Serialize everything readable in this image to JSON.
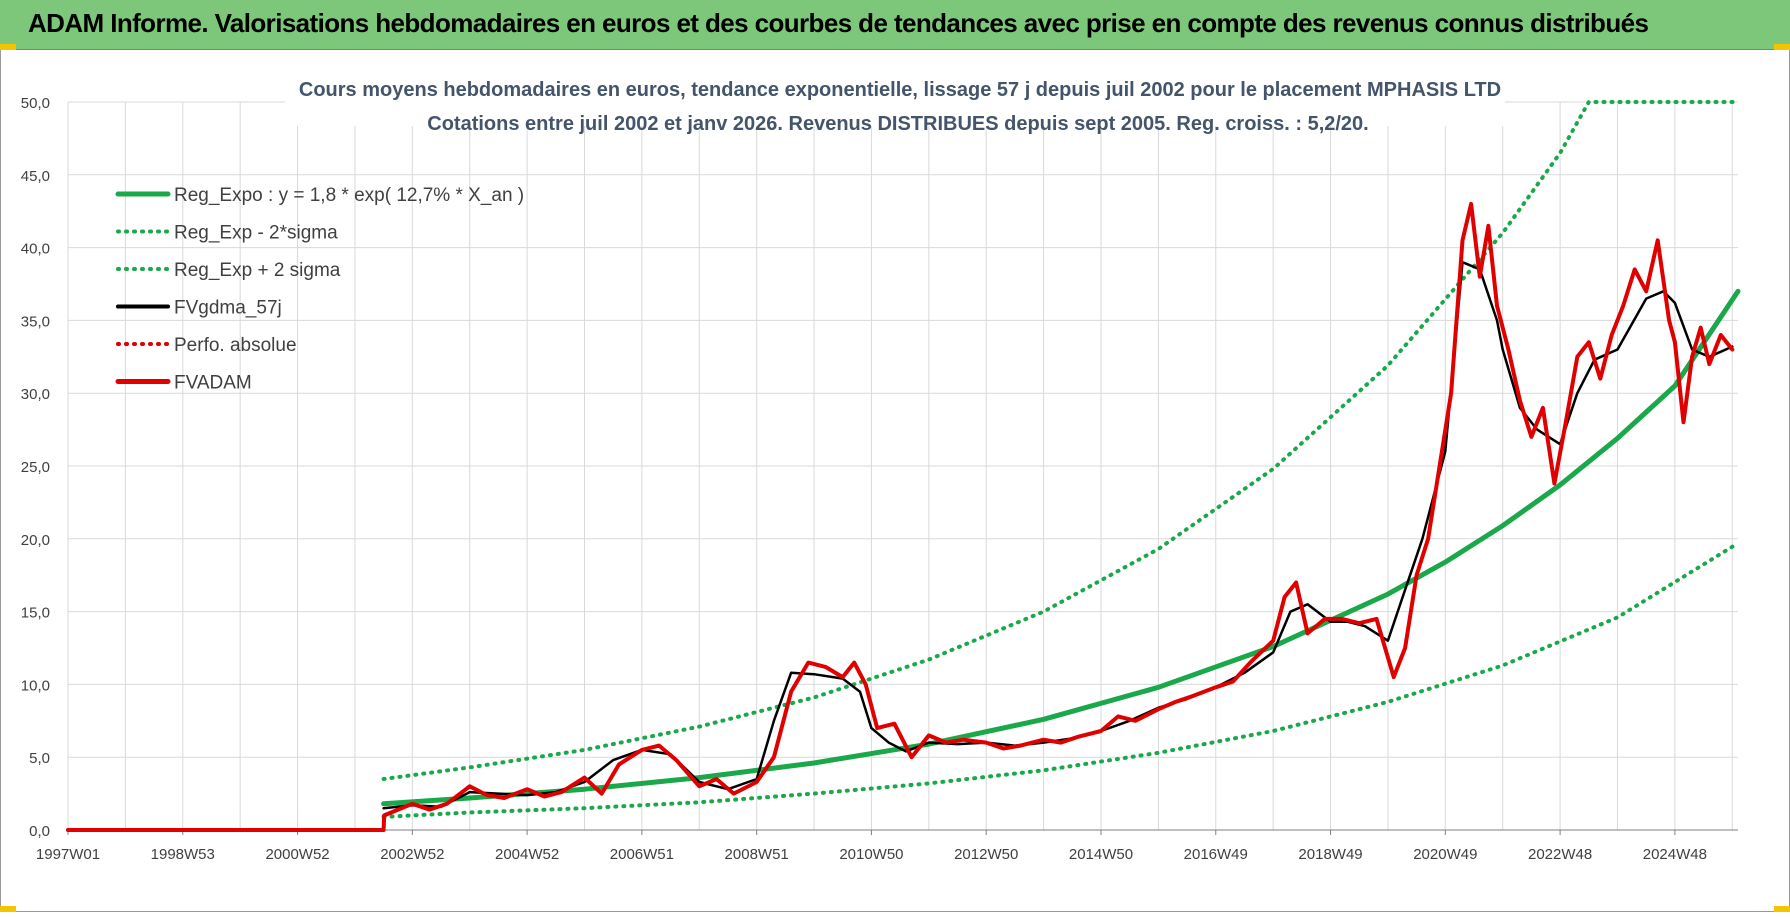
{
  "banner": {
    "title": "ADAM Informe. Valorisations hebdomadaires en euros et des courbes de tendances avec prise en compte des revenus connus distribués"
  },
  "colors": {
    "banner_bg": "#7dc77a",
    "reg_expo": "#1aa84a",
    "fvgdma": "#000000",
    "fvadam": "#e00000",
    "grid": "#d9d9d9",
    "text": "#404040"
  },
  "chart_data": {
    "type": "line",
    "title": "Cours moyens hebdomadaires en euros, tendance exponentielle, lissage 57 j depuis juil 2002 pour le placement MPHASIS LTD",
    "subtitle": "Cotations entre juil 2002 et janv 2026. Revenus DISTRIBUES depuis sept 2005. Reg. croiss. : 5,2/20.",
    "xlabel": "",
    "ylabel": "",
    "ylim": [
      0,
      50
    ],
    "xlim": [
      1997.0,
      2026.1
    ],
    "y_ticks": [
      "0,0",
      "5,0",
      "10,0",
      "15,0",
      "20,0",
      "25,0",
      "30,0",
      "35,0",
      "40,0",
      "45,0",
      "50,0"
    ],
    "x_ticks": [
      {
        "label": "1997W01",
        "x": 1997.0
      },
      {
        "label": "1998W53",
        "x": 1999.0
      },
      {
        "label": "2000W52",
        "x": 2001.0
      },
      {
        "label": "2002W52",
        "x": 2003.0
      },
      {
        "label": "2004W52",
        "x": 2005.0
      },
      {
        "label": "2006W51",
        "x": 2007.0
      },
      {
        "label": "2008W51",
        "x": 2009.0
      },
      {
        "label": "2010W50",
        "x": 2011.0
      },
      {
        "label": "2012W50",
        "x": 2013.0
      },
      {
        "label": "2014W50",
        "x": 2015.0
      },
      {
        "label": "2016W49",
        "x": 2017.0
      },
      {
        "label": "2018W49",
        "x": 2019.0
      },
      {
        "label": "2020W49",
        "x": 2021.0
      },
      {
        "label": "2022W48",
        "x": 2023.0
      },
      {
        "label": "2024W48",
        "x": 2025.0
      }
    ],
    "grid": true,
    "legend_position": "top-left",
    "series": [
      {
        "name": "Reg_Expo : y = 1,8 * exp( 12,7% *  X_an )",
        "style": "solid-thick",
        "color": "#1aa84a",
        "x": [
          2002.5,
          2004.0,
          2006.0,
          2008.0,
          2010.0,
          2012.0,
          2014.0,
          2016.0,
          2018.0,
          2020.0,
          2021.0,
          2022.0,
          2023.0,
          2024.0,
          2025.0,
          2026.1
        ],
        "y": [
          1.8,
          2.2,
          2.8,
          3.6,
          4.6,
          5.9,
          7.6,
          9.8,
          12.6,
          16.2,
          18.4,
          20.9,
          23.7,
          26.9,
          30.5,
          37.0
        ]
      },
      {
        "name": "Reg_Exp - 2*sigma",
        "style": "dotted",
        "color": "#1aa84a",
        "x": [
          2002.5,
          2004.0,
          2006.0,
          2008.0,
          2010.0,
          2012.0,
          2014.0,
          2016.0,
          2018.0,
          2020.0,
          2022.0,
          2024.0,
          2026.1
        ],
        "y": [
          0.9,
          1.2,
          1.5,
          1.9,
          2.5,
          3.2,
          4.1,
          5.3,
          6.8,
          8.8,
          11.3,
          14.6,
          19.7
        ]
      },
      {
        "name": "Reg_Exp + 2 sigma",
        "style": "dotted",
        "color": "#1aa84a",
        "x": [
          2002.5,
          2004.0,
          2006.0,
          2008.0,
          2010.0,
          2012.0,
          2014.0,
          2016.0,
          2018.0,
          2020.0,
          2022.0,
          2023.0,
          2023.5,
          2026.1
        ],
        "y": [
          3.5,
          4.3,
          5.5,
          7.1,
          9.1,
          11.7,
          15.0,
          19.3,
          24.8,
          31.9,
          41.0,
          46.5,
          50.0,
          50.0
        ]
      },
      {
        "name": "FVgdma_57j",
        "style": "solid",
        "color": "#000000",
        "x": [
          2002.5,
          2003.0,
          2003.5,
          2004.0,
          2004.5,
          2005.0,
          2005.5,
          2006.0,
          2006.5,
          2007.0,
          2007.5,
          2008.0,
          2008.5,
          2009.0,
          2009.3,
          2009.6,
          2010.0,
          2010.5,
          2010.8,
          2011.0,
          2011.3,
          2011.6,
          2012.0,
          2012.5,
          2013.0,
          2013.5,
          2014.0,
          2014.5,
          2015.0,
          2015.5,
          2016.0,
          2016.5,
          2017.0,
          2017.5,
          2018.0,
          2018.3,
          2018.6,
          2019.0,
          2019.3,
          2019.6,
          2020.0,
          2020.3,
          2020.6,
          2021.0,
          2021.3,
          2021.6,
          2021.9,
          2022.0,
          2022.3,
          2022.6,
          2023.0,
          2023.3,
          2023.6,
          2024.0,
          2024.5,
          2024.8,
          2025.0,
          2025.3,
          2025.6,
          2026.0
        ],
        "y": [
          1.5,
          1.7,
          1.6,
          2.6,
          2.5,
          2.4,
          2.6,
          3.3,
          4.8,
          5.5,
          5.2,
          3.3,
          2.8,
          3.5,
          7.5,
          10.8,
          10.7,
          10.4,
          9.5,
          7.0,
          6.0,
          5.4,
          6.0,
          5.9,
          6.0,
          5.8,
          6.0,
          6.3,
          6.8,
          7.5,
          8.4,
          9.0,
          9.8,
          10.8,
          12.2,
          15.0,
          15.5,
          14.3,
          14.3,
          14.0,
          13.0,
          16.5,
          20.0,
          26.0,
          39.0,
          38.5,
          35.0,
          33.0,
          29.0,
          27.5,
          26.5,
          30.0,
          32.3,
          33.0,
          36.5,
          37.0,
          36.2,
          33.0,
          32.5,
          33.2
        ]
      },
      {
        "name": "Perfo. absolue",
        "style": "dotted",
        "color": "#e00000",
        "x": [],
        "y": []
      },
      {
        "name": "FVADAM",
        "style": "solid-thick",
        "color": "#e00000",
        "x": [
          1997.0,
          2002.5,
          2002.51,
          2003.0,
          2003.3,
          2003.6,
          2004.0,
          2004.3,
          2004.6,
          2005.0,
          2005.3,
          2005.6,
          2006.0,
          2006.3,
          2006.6,
          2007.0,
          2007.3,
          2007.6,
          2008.0,
          2008.3,
          2008.6,
          2009.0,
          2009.3,
          2009.6,
          2009.9,
          2010.2,
          2010.5,
          2010.7,
          2010.9,
          2011.1,
          2011.4,
          2011.7,
          2012.0,
          2012.3,
          2012.6,
          2013.0,
          2013.3,
          2013.6,
          2014.0,
          2014.3,
          2014.6,
          2015.0,
          2015.3,
          2015.6,
          2016.0,
          2016.3,
          2016.6,
          2017.0,
          2017.3,
          2017.6,
          2018.0,
          2018.2,
          2018.4,
          2018.6,
          2018.9,
          2019.2,
          2019.5,
          2019.8,
          2020.1,
          2020.3,
          2020.5,
          2020.7,
          2020.9,
          2021.1,
          2021.3,
          2021.45,
          2021.6,
          2021.75,
          2021.9,
          2022.1,
          2022.3,
          2022.5,
          2022.7,
          2022.9,
          2023.1,
          2023.3,
          2023.5,
          2023.7,
          2023.9,
          2024.1,
          2024.3,
          2024.5,
          2024.7,
          2024.9,
          2025.0,
          2025.15,
          2025.3,
          2025.45,
          2025.6,
          2025.8,
          2026.0
        ],
        "y": [
          0.0,
          0.0,
          1.0,
          1.8,
          1.4,
          1.8,
          3.0,
          2.4,
          2.2,
          2.8,
          2.3,
          2.6,
          3.6,
          2.5,
          4.5,
          5.5,
          5.8,
          4.8,
          3.0,
          3.5,
          2.5,
          3.3,
          5.0,
          9.5,
          11.5,
          11.2,
          10.5,
          11.5,
          10.0,
          7.0,
          7.3,
          5.0,
          6.5,
          6.0,
          6.2,
          6.0,
          5.6,
          5.8,
          6.2,
          6.0,
          6.4,
          6.8,
          7.8,
          7.5,
          8.3,
          8.8,
          9.2,
          9.8,
          10.2,
          11.5,
          13.0,
          16.0,
          17.0,
          13.5,
          14.5,
          14.5,
          14.2,
          14.5,
          10.5,
          12.5,
          17.5,
          20.0,
          25.0,
          30.0,
          40.5,
          43.0,
          38.0,
          41.5,
          36.0,
          33.0,
          29.5,
          27.0,
          29.0,
          23.8,
          28.0,
          32.5,
          33.5,
          31.0,
          34.0,
          36.0,
          38.5,
          37.0,
          40.5,
          35.0,
          33.5,
          28.0,
          32.5,
          34.5,
          32.0,
          34.0,
          33.0
        ]
      }
    ]
  }
}
